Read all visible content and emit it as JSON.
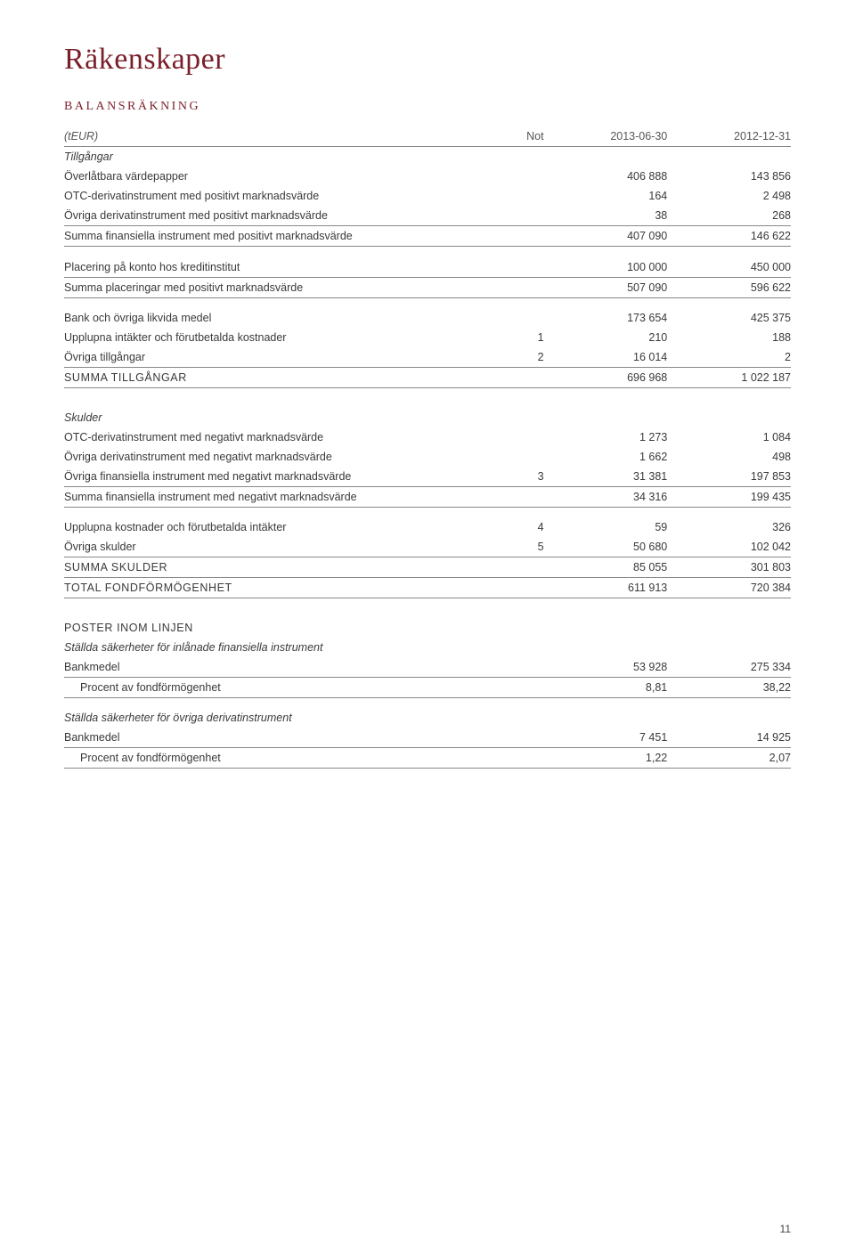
{
  "page_number": "11",
  "title": "Räkenskaper",
  "section_label": "BALANSRÄKNING",
  "header": {
    "teur": "(tEUR)",
    "not": "Not",
    "c1": "2013-06-30",
    "c2": "2012-12-31"
  },
  "tillgangar": {
    "heading": "Tillgångar",
    "rows": [
      {
        "label": "Överlåtbara värdepapper",
        "not": "",
        "v1": "406 888",
        "v2": "143 856"
      },
      {
        "label": "OTC-derivatinstrument med positivt marknadsvärde",
        "not": "",
        "v1": "164",
        "v2": "2 498"
      },
      {
        "label": "Övriga derivatinstrument med positivt marknadsvärde",
        "not": "",
        "v1": "38",
        "v2": "268"
      }
    ],
    "sum1": {
      "label": "Summa finansiella instrument med positivt marknadsvärde",
      "not": "",
      "v1": "407 090",
      "v2": "146 622"
    },
    "rows2": [
      {
        "label": "Placering på konto hos kreditinstitut",
        "not": "",
        "v1": "100 000",
        "v2": "450 000"
      }
    ],
    "sum2": {
      "label": "Summa placeringar med positivt marknadsvärde",
      "not": "",
      "v1": "507 090",
      "v2": "596 622"
    },
    "rows3": [
      {
        "label": "Bank och övriga likvida medel",
        "not": "",
        "v1": "173 654",
        "v2": "425 375"
      },
      {
        "label": "Upplupna intäkter och förutbetalda kostnader",
        "not": "1",
        "v1": "210",
        "v2": "188"
      },
      {
        "label": "Övriga tillgångar",
        "not": "2",
        "v1": "16 014",
        "v2": "2"
      }
    ],
    "total": {
      "label": "SUMMA TILLGÅNGAR",
      "not": "",
      "v1": "696 968",
      "v2": "1 022 187"
    }
  },
  "skulder": {
    "heading": "Skulder",
    "rows": [
      {
        "label": "OTC-derivatinstrument med negativt marknadsvärde",
        "not": "",
        "v1": "1 273",
        "v2": "1 084"
      },
      {
        "label": "Övriga derivatinstrument med negativt marknadsvärde",
        "not": "",
        "v1": "1 662",
        "v2": "498"
      },
      {
        "label": "Övriga finansiella instrument med negativt marknadsvärde",
        "not": "3",
        "v1": "31 381",
        "v2": "197 853"
      }
    ],
    "sum1": {
      "label": "Summa finansiella instrument med negativt marknadsvärde",
      "not": "",
      "v1": "34 316",
      "v2": "199 435"
    },
    "rows2": [
      {
        "label": "Upplupna kostnader och förutbetalda intäkter",
        "not": "4",
        "v1": "59",
        "v2": "326"
      },
      {
        "label": "Övriga skulder",
        "not": "5",
        "v1": "50 680",
        "v2": "102 042"
      }
    ],
    "sum2": {
      "label": "SUMMA SKULDER",
      "not": "",
      "v1": "85 055",
      "v2": "301 803"
    },
    "total": {
      "label": "TOTAL FONDFÖRMÖGENHET",
      "not": "",
      "v1": "611 913",
      "v2": "720 384"
    }
  },
  "poster": {
    "heading": "POSTER INOM LINJEN",
    "sub1": "Ställda säkerheter för inlånade finansiella instrument",
    "rows1": [
      {
        "label": "Bankmedel",
        "not": "",
        "v1": "53 928",
        "v2": "275 334"
      },
      {
        "label": "Procent av fondförmögenhet",
        "indent": true,
        "not": "",
        "v1": "8,81",
        "v2": "38,22"
      }
    ],
    "sub2": "Ställda säkerheter för övriga derivatinstrument",
    "rows2": [
      {
        "label": "Bankmedel",
        "not": "",
        "v1": "7 451",
        "v2": "14 925"
      },
      {
        "label": "Procent av fondförmögenhet",
        "indent": true,
        "not": "",
        "v1": "1,22",
        "v2": "2,07"
      }
    ]
  }
}
